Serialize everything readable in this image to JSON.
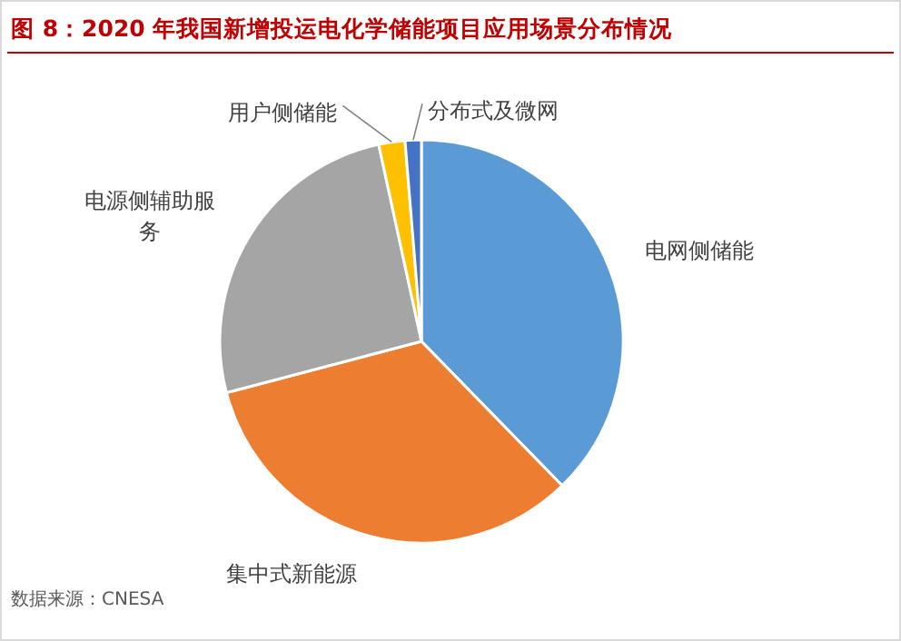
{
  "chart_data": {
    "type": "pie",
    "title": "图 8：2020 年我国新增投运电化学储能项目应用场景分布情况",
    "categories": [
      "电网侧储能",
      "集中式新能源",
      "电源侧辅助服务",
      "用户侧储能",
      "分布式及微网"
    ],
    "values": [
      37.7,
      33.2,
      25.7,
      2.1,
      1.3
    ],
    "colors": [
      "#5b9bd5",
      "#ed7d31",
      "#a5a5a5",
      "#ffc000",
      "#4472c4"
    ],
    "annotations": [
      "数据来源：CNESA"
    ]
  }
}
